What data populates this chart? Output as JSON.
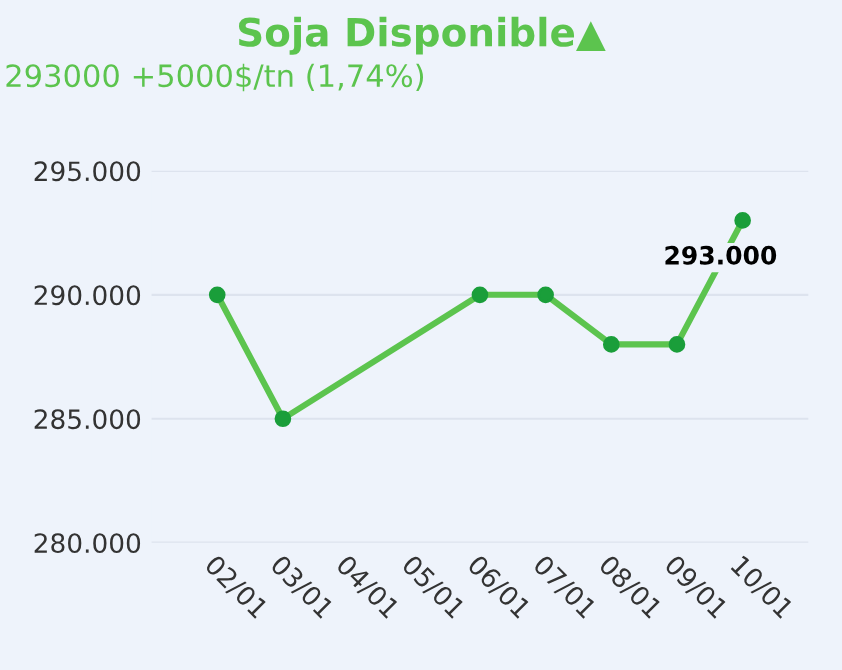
{
  "chart_data": {
    "type": "line",
    "title": "Soja Disponible▲",
    "subtitle": "293000 +5000$/tn (1,74%)",
    "x": [
      "--01-02",
      "--01-03",
      "--01-06",
      "--01-07",
      "--01-08",
      "--01-09",
      "--01-10"
    ],
    "series": [
      {
        "color": "#5cc44e",
        "values": [
          290000,
          285000,
          290000,
          290000,
          288000,
          288000,
          293000
        ]
      }
    ],
    "marker": "circle",
    "line_style": "solid",
    "grid": "y",
    "annotations": [
      {
        "text": "293.000",
        "x": "--01-10",
        "y": 293000
      }
    ],
    "xlim": [
      "--01-01",
      "--01-11"
    ],
    "xticks": [
      {
        "value": "--01-02",
        "label": "02/01"
      },
      {
        "value": "--01-03",
        "label": "03/01"
      },
      {
        "value": "--01-04",
        "label": "04/01"
      },
      {
        "value": "--01-05",
        "label": "05/01"
      },
      {
        "value": "--01-06",
        "label": "06/01"
      },
      {
        "value": "--01-07",
        "label": "07/01"
      },
      {
        "value": "--01-08",
        "label": "08/01"
      },
      {
        "value": "--01-09",
        "label": "09/01"
      },
      {
        "value": "--01-10",
        "label": "10/01"
      }
    ],
    "ylim": [
      280000,
      295000
    ],
    "yticks": [
      {
        "value": 280000,
        "label": "280.000"
      },
      {
        "value": 285000,
        "label": "285.000"
      },
      {
        "value": 290000,
        "label": "290.000"
      },
      {
        "value": 295000,
        "label": "295.000"
      }
    ]
  }
}
